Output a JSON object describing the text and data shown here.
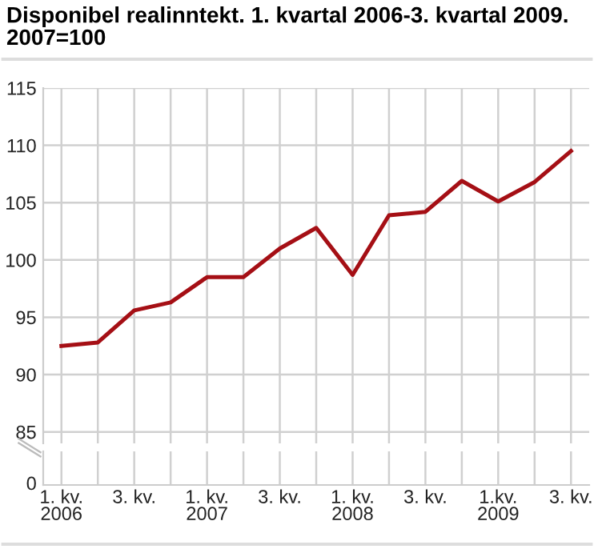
{
  "chart_data": {
    "type": "line",
    "title": "Disponibel realinntekt. 1. kvartal 2006-3. kvartal 2009.\n2007=100",
    "categories": [
      "1. kv.\n2006",
      null,
      "3. kv.",
      null,
      "1. kv.\n2007",
      null,
      "3. kv.",
      null,
      "1. kv.\n2008",
      null,
      "3. kv.",
      null,
      "1.kv.\n2009",
      null,
      "3. kv."
    ],
    "series": [
      {
        "color": "#a50f15",
        "values": [
          92.5,
          92.8,
          95.6,
          96.3,
          98.5,
          98.5,
          101.0,
          102.8,
          98.7,
          103.9,
          104.2,
          106.9,
          105.1,
          106.8,
          109.5
        ]
      }
    ],
    "ylim": [
      84,
      115
    ],
    "yticks": [
      85,
      90,
      95,
      100,
      105,
      110,
      115
    ],
    "annotations": [
      "0"
    ],
    "grid": true,
    "marker": "none",
    "line_style": "solid"
  }
}
